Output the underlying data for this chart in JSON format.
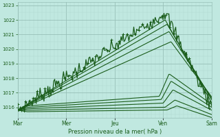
{
  "bg_color": "#c0e8e0",
  "grid_minor_color": "#b0d8d0",
  "grid_major_color": "#98c0b8",
  "line_color": "#1a5c1a",
  "ylim": [
    1015.3,
    1023.2
  ],
  "yticks": [
    1016,
    1017,
    1018,
    1019,
    1020,
    1021,
    1022,
    1023
  ],
  "day_labels": [
    "Mar",
    "Mer",
    "Jeu",
    "Ven",
    "Sam"
  ],
  "day_positions": [
    0,
    0.25,
    0.5,
    0.75,
    1.0
  ],
  "xlabel": "Pression niveau de la mer( hPa )",
  "n_points": 200
}
